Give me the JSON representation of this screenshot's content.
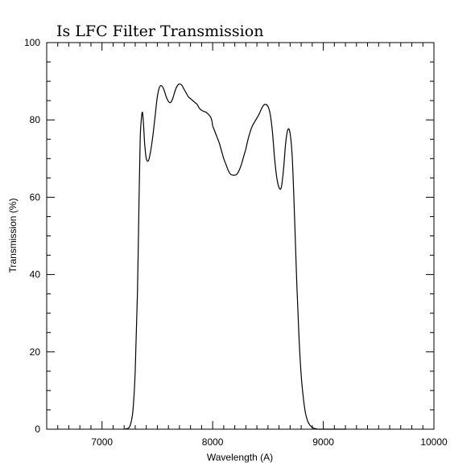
{
  "chart_data": {
    "type": "line",
    "title": "Is LFC Filter Transmission",
    "xlabel": "Wavelength (A)",
    "ylabel": "Transmission (%)",
    "xlim": [
      6500,
      10000
    ],
    "ylim": [
      0,
      100
    ],
    "grid": false,
    "x_major_ticks": [
      7000,
      8000,
      9000,
      10000
    ],
    "x_tick_labels": [
      "7000",
      "8000",
      "9000",
      "10000"
    ],
    "x_minor_step": 100,
    "y_major_ticks": [
      0,
      20,
      40,
      60,
      80,
      100
    ],
    "y_tick_labels": [
      "0",
      "20",
      "40",
      "60",
      "80",
      "100"
    ],
    "y_minor_step": 5,
    "series": [
      {
        "color": "#000000",
        "x": [
          7200,
          7240,
          7260,
          7280,
          7300,
          7320,
          7335,
          7345,
          7355,
          7365,
          7375,
          7385,
          7400,
          7420,
          7440,
          7460,
          7480,
          7500,
          7520,
          7540,
          7560,
          7580,
          7600,
          7620,
          7640,
          7660,
          7680,
          7700,
          7720,
          7740,
          7760,
          7780,
          7800,
          7820,
          7840,
          7860,
          7880,
          7900,
          7920,
          7940,
          7960,
          7975,
          7985,
          7995,
          8000,
          8020,
          8040,
          8060,
          8080,
          8100,
          8120,
          8140,
          8160,
          8180,
          8200,
          8220,
          8240,
          8260,
          8280,
          8300,
          8320,
          8340,
          8360,
          8380,
          8400,
          8420,
          8440,
          8460,
          8480,
          8500,
          8520,
          8540,
          8560,
          8580,
          8600,
          8620,
          8640,
          8660,
          8680,
          8700,
          8720,
          8740,
          8760,
          8780,
          8800,
          8820,
          8840,
          8860,
          8880,
          8900,
          8920,
          8935,
          8950,
          8960,
          8970,
          8980,
          8990,
          9000,
          9010,
          9020,
          9030,
          9040,
          9050,
          9060,
          9070,
          9080,
          9100,
          9130,
          9160,
          9200
        ],
        "y": [
          0,
          0.3,
          1.5,
          5,
          15,
          35,
          60,
          75,
          80,
          82,
          79,
          74,
          70,
          69.5,
          72,
          76,
          81,
          86,
          88.5,
          88.8,
          87.8,
          86,
          84.8,
          84.5,
          85.6,
          87.5,
          88.8,
          89.3,
          89,
          88,
          87,
          86,
          85.5,
          85,
          84.5,
          84,
          83,
          82.5,
          82.2,
          82,
          81.5,
          81,
          80.5,
          79.5,
          78.5,
          77,
          75.5,
          74,
          72,
          70,
          68.5,
          67,
          66,
          65.7,
          65.7,
          66,
          67,
          68.5,
          70.5,
          72.5,
          75,
          77,
          78.5,
          79.5,
          80.5,
          81.5,
          82.8,
          83.8,
          84,
          83.5,
          81.5,
          77,
          70,
          65,
          62.5,
          62.5,
          67,
          74,
          77.5,
          76.5,
          70,
          55,
          38,
          24,
          14,
          8,
          4,
          2,
          1,
          0.5,
          0.2,
          0.1,
          0,
          0,
          0,
          0,
          0,
          0,
          0,
          0,
          0,
          0,
          0,
          0,
          0,
          0,
          0,
          0,
          0,
          0
        ]
      }
    ]
  }
}
